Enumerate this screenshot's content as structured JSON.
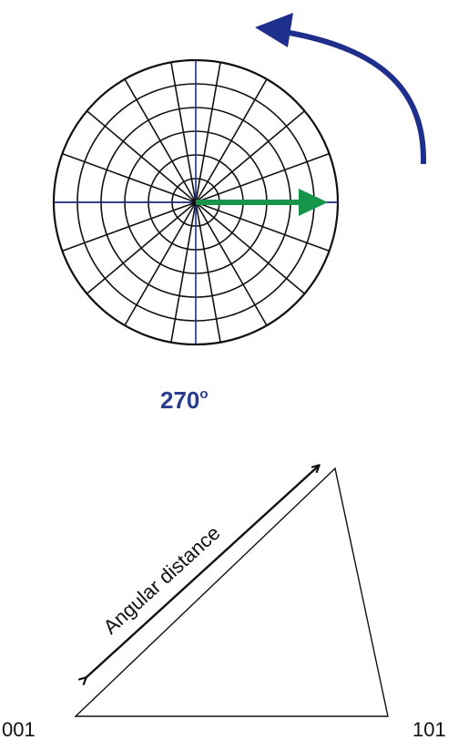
{
  "rotation_label": {
    "value": "270",
    "superscript": "o"
  },
  "triangle": {
    "edge_label": "Angular distance",
    "left_corner": "001",
    "right_corner": "101"
  },
  "colors": {
    "rotation_arrow": "#1f2f8c",
    "direction_arrow": "#15944a",
    "axes": "#1f2f8c",
    "grid": "#111111",
    "rotation_label": "#2a3c8c"
  },
  "icons": {
    "rotation": "curved-arrow-icon",
    "direction": "right-arrow-icon"
  }
}
